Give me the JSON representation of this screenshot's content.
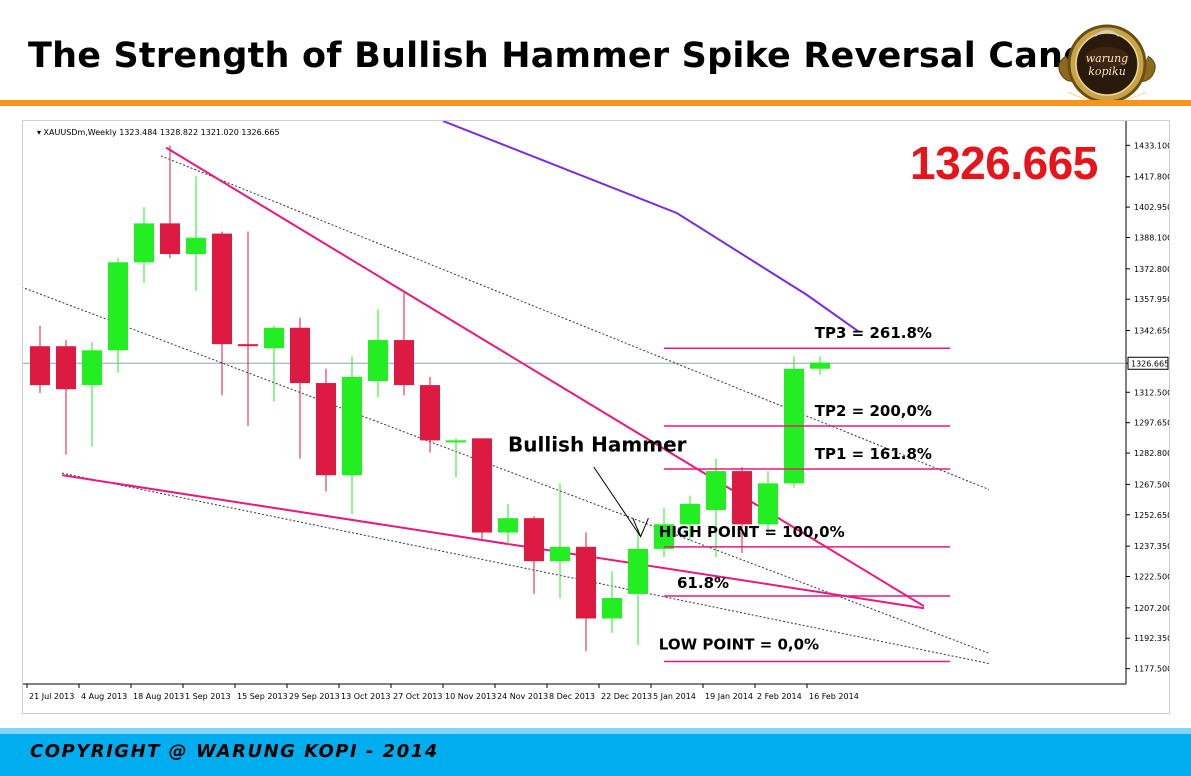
{
  "header": {
    "title": "The Strength of Bullish Hammer Spike Reversal Candles",
    "logo_text_top": "warung",
    "logo_text_bottom": "kopiku"
  },
  "footer": {
    "text": "COPYRIGHT @ WARUNG KOPI - 2014"
  },
  "colors": {
    "bull": "#22ee22",
    "bear": "#dd1a42",
    "fib": "#e8197f",
    "channel": "#333333",
    "ma": "#7b2be2",
    "price_line": "#8aa3bd",
    "accent": "#f7941d",
    "footer": "#00aeef",
    "price_text": "#e8141b"
  },
  "chart_data": {
    "type": "candlestick",
    "symbol_label": "XAUUSDm,Weekly  1323.484 1328.822 1321.020 1326.665",
    "current_price": "1326.665",
    "current_price_label": "1326.665",
    "ylim": [
      1170,
      1445
    ],
    "y_ticks": [
      "1433.100",
      "1417.800",
      "1402.950",
      "1388.100",
      "1372.800",
      "1357.950",
      "1342.650",
      "1326.665",
      "1312.500",
      "1297.650",
      "1282.800",
      "1267.500",
      "1252.650",
      "1237.350",
      "1222.500",
      "1207.200",
      "1192.350",
      "1177.500"
    ],
    "x_ticks": [
      "21 Jul 2013",
      "4 Aug 2013",
      "18 Aug 2013",
      "1 Sep 2013",
      "15 Sep 2013",
      "29 Sep 2013",
      "13 Oct 2013",
      "27 Oct 2013",
      "10 Nov 2013",
      "24 Nov 2013",
      "8 Dec 2013",
      "22 Dec 2013",
      "5 Jan 2014",
      "19 Jan 2014",
      "2 Feb 2014",
      "16 Feb 2014"
    ],
    "candles": [
      {
        "o": 1335,
        "h": 1345,
        "l": 1312,
        "c": 1316
      },
      {
        "o": 1335,
        "h": 1338,
        "l": 1282,
        "c": 1314
      },
      {
        "o": 1316,
        "h": 1337,
        "l": 1286,
        "c": 1333
      },
      {
        "o": 1333,
        "h": 1378,
        "l": 1322,
        "c": 1376
      },
      {
        "o": 1376,
        "h": 1403,
        "l": 1366,
        "c": 1395
      },
      {
        "o": 1395,
        "h": 1433,
        "l": 1378,
        "c": 1380
      },
      {
        "o": 1380,
        "h": 1418,
        "l": 1362,
        "c": 1388
      },
      {
        "o": 1390,
        "h": 1391,
        "l": 1311,
        "c": 1336
      },
      {
        "o": 1336,
        "h": 1391,
        "l": 1296,
        "c": 1335
      },
      {
        "o": 1334,
        "h": 1345,
        "l": 1308,
        "c": 1344
      },
      {
        "o": 1344,
        "h": 1349,
        "l": 1280,
        "c": 1317
      },
      {
        "o": 1317,
        "h": 1324,
        "l": 1264,
        "c": 1272
      },
      {
        "o": 1272,
        "h": 1330,
        "l": 1253,
        "c": 1320
      },
      {
        "o": 1318,
        "h": 1353,
        "l": 1310,
        "c": 1338
      },
      {
        "o": 1338,
        "h": 1361,
        "l": 1311,
        "c": 1316
      },
      {
        "o": 1316,
        "h": 1320,
        "l": 1283,
        "c": 1289
      },
      {
        "o": 1288,
        "h": 1290,
        "l": 1271,
        "c": 1289
      },
      {
        "o": 1290,
        "h": 1290,
        "l": 1241,
        "c": 1244
      },
      {
        "o": 1244,
        "h": 1258,
        "l": 1238,
        "c": 1251
      },
      {
        "o": 1251,
        "h": 1252,
        "l": 1214,
        "c": 1230
      },
      {
        "o": 1230,
        "h": 1268,
        "l": 1212,
        "c": 1237
      },
      {
        "o": 1237,
        "h": 1244,
        "l": 1186,
        "c": 1202
      },
      {
        "o": 1202,
        "h": 1225,
        "l": 1195,
        "c": 1212
      },
      {
        "o": 1214,
        "h": 1246,
        "l": 1189,
        "c": 1236
      },
      {
        "o": 1236,
        "h": 1256,
        "l": 1232,
        "c": 1248
      },
      {
        "o": 1248,
        "h": 1262,
        "l": 1240,
        "c": 1258
      },
      {
        "o": 1255,
        "h": 1280,
        "l": 1232,
        "c": 1274
      },
      {
        "o": 1274,
        "h": 1276,
        "l": 1234,
        "c": 1248
      },
      {
        "o": 1248,
        "h": 1274,
        "l": 1243,
        "c": 1268
      },
      {
        "o": 1268,
        "h": 1330,
        "l": 1266,
        "c": 1324
      },
      {
        "o": 1324,
        "h": 1330,
        "l": 1321,
        "c": 1327
      }
    ],
    "moving_average": [
      [
        16,
        1445
      ],
      [
        25,
        1400
      ],
      [
        30,
        1360
      ],
      [
        32,
        1342
      ]
    ],
    "channel_lines": [
      {
        "from": [
          -1,
          1366
        ],
        "to": [
          37,
          1185
        ]
      },
      {
        "from": [
          4.8,
          1428
        ],
        "to": [
          37,
          1265
        ]
      },
      {
        "from": [
          1,
          1273
        ],
        "to": [
          37,
          1180
        ]
      }
    ],
    "trend_lines": [
      {
        "from": [
          5,
          1432
        ],
        "to": [
          34.5,
          1208
        ]
      },
      {
        "from": [
          1,
          1272
        ],
        "to": [
          34.5,
          1207
        ]
      }
    ],
    "fib_levels": [
      {
        "label": "TP3 = 261.8%",
        "price": 1334
      },
      {
        "label": "TP2 = 200,0%",
        "price": 1296
      },
      {
        "label": "TP1 = 161.8%",
        "price": 1275
      },
      {
        "label": "HIGH POINT = 100,0%",
        "price": 1237
      },
      {
        "label": "61.8%",
        "price": 1213
      },
      {
        "label": "LOW POINT  = 0,0%",
        "price": 1181
      }
    ],
    "annotation": {
      "label": "Bullish Hammer"
    }
  }
}
